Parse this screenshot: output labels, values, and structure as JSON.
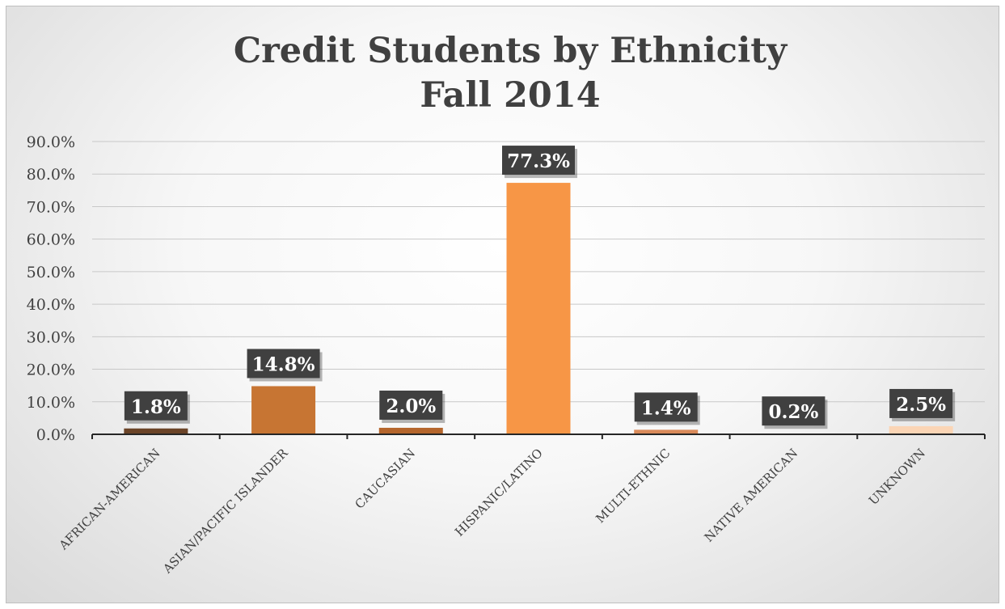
{
  "chart_data": {
    "type": "bar",
    "title": "Credit Students by Ethnicity",
    "subtitle": "Fall 2014",
    "xlabel": "",
    "ylabel": "",
    "categories": [
      "AFRICAN-AMERICAN",
      "ASIAN/PACIFIC ISLANDER",
      "CAUCASIAN",
      "HISPANIC/LATINO",
      "MULTI-ETHNIC",
      "NATIVE AMERICAN",
      "UNKNOWN"
    ],
    "values": [
      1.8,
      14.8,
      2.0,
      77.3,
      1.4,
      0.2,
      2.5
    ],
    "data_labels": [
      "1.8%",
      "14.8%",
      "2.0%",
      "77.3%",
      "1.4%",
      "0.2%",
      "2.5%"
    ],
    "ylim": [
      0,
      90
    ],
    "yticks": [
      0,
      10,
      20,
      30,
      40,
      50,
      60,
      70,
      80,
      90
    ],
    "ytick_labels": [
      "0.0%",
      "10.0%",
      "20.0%",
      "30.0%",
      "40.0%",
      "50.0%",
      "60.0%",
      "70.0%",
      "80.0%",
      "90.0%"
    ],
    "bar_colors": [
      "#6b4428",
      "#c77533",
      "#b5662d",
      "#f79646",
      "#d98a5a",
      "#cc8c66",
      "#fbd5b5"
    ],
    "gridlines": true,
    "legend": "none"
  }
}
